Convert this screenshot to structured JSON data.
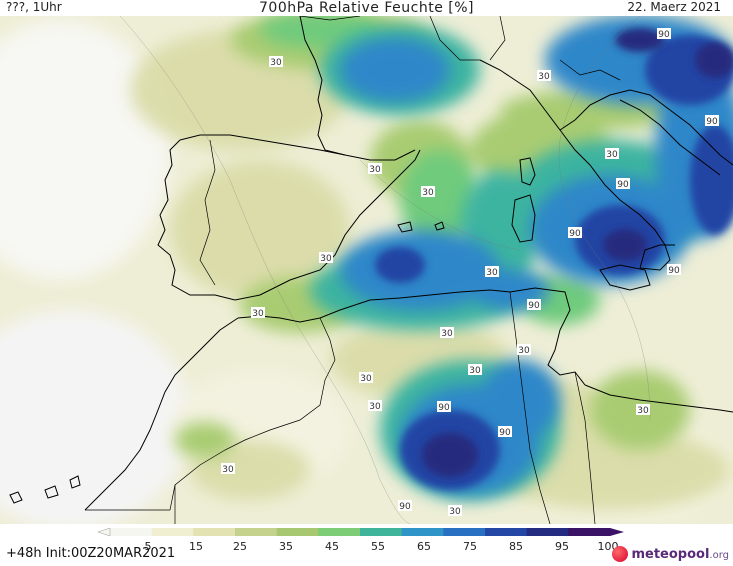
{
  "header": {
    "left": "???, 1Uhr",
    "title": "700hPa Relative Feuchte [%]",
    "right": "22. Maerz 2021"
  },
  "colorbar": {
    "ticks": [
      "5",
      "15",
      "25",
      "35",
      "45",
      "55",
      "65",
      "75",
      "85",
      "95",
      "100"
    ],
    "colors": [
      "#f6f6f0",
      "#f0efd2",
      "#e2e2b2",
      "#c5d28d",
      "#a7c870",
      "#7dcc76",
      "#3fb49a",
      "#2f95c8",
      "#2a70c2",
      "#2447a5",
      "#232c80",
      "#3b1366"
    ]
  },
  "contour_labels": {
    "values": [
      "30",
      "30",
      "30",
      "30",
      "30",
      "30",
      "30",
      "30",
      "30",
      "30",
      "30",
      "30",
      "30",
      "30",
      "30",
      "30",
      "90",
      "90",
      "90",
      "90",
      "90",
      "90",
      "90",
      "90",
      "90"
    ]
  },
  "footer": {
    "run": "+48h Init:00Z20MAR2021",
    "logo_main": "meteopool",
    "logo_suffix": ".org"
  }
}
